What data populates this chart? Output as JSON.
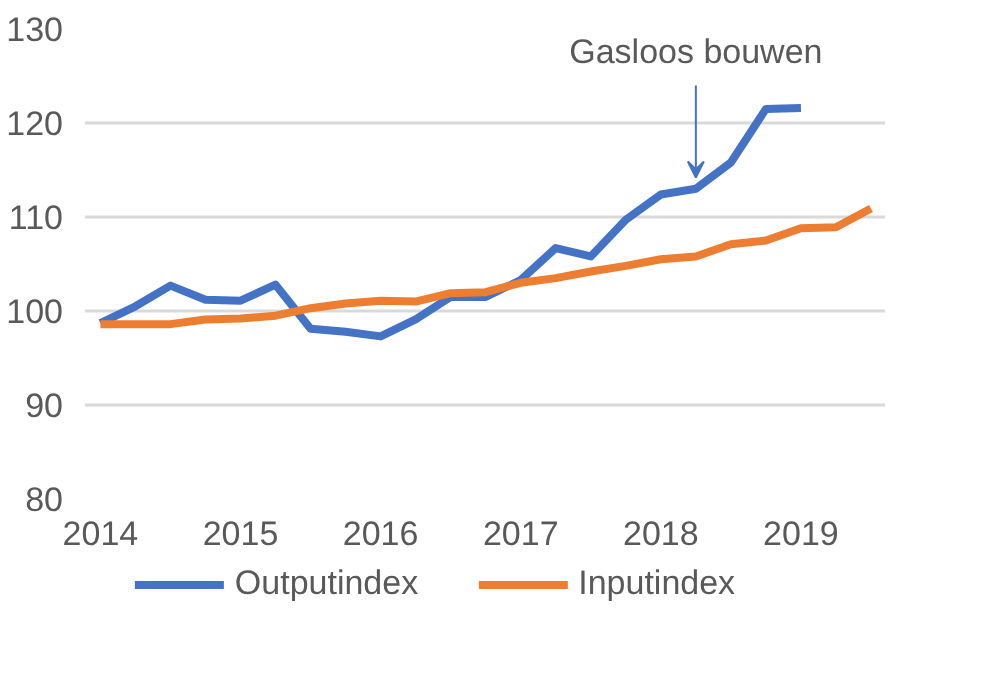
{
  "chart_data": {
    "type": "line",
    "x": [
      2014,
      2014.25,
      2014.5,
      2014.75,
      2015,
      2015.25,
      2015.5,
      2015.75,
      2016,
      2016.25,
      2016.5,
      2016.75,
      2017,
      2017.25,
      2017.5,
      2017.75,
      2018,
      2018.25,
      2018.5,
      2018.75,
      2019,
      2019.25,
      2019.5
    ],
    "series": [
      {
        "name": "Outputindex",
        "color": "#4472c4",
        "values": [
          98.7,
          100.5,
          102.7,
          101.2,
          101.1,
          102.8,
          98.1,
          97.8,
          97.3,
          99.1,
          101.5,
          101.5,
          103.3,
          106.7,
          105.8,
          109.7,
          112.4,
          113,
          115.8,
          121.5,
          121.6,
          null,
          null
        ]
      },
      {
        "name": "Inputindex",
        "color": "#ed7d31",
        "values": [
          98.6,
          98.6,
          98.6,
          99.1,
          99.2,
          99.5,
          100.3,
          100.8,
          101.1,
          101,
          101.9,
          102,
          103,
          103.5,
          104.2,
          104.8,
          105.5,
          105.8,
          107.1,
          107.5,
          108.8,
          108.9,
          110.9
        ]
      }
    ],
    "xlim": [
      2013.89,
      2019.6
    ],
    "xticks": [
      2014,
      2015,
      2016,
      2017,
      2018,
      2019
    ],
    "ylim": [
      80,
      130
    ],
    "yticks": [
      80,
      90,
      100,
      110,
      120,
      130
    ],
    "grid": "y",
    "legend": "bottom",
    "marker": "none",
    "line_style": "solid",
    "annotations": [
      {
        "text": "Gasloos bouwen",
        "x": 2018.25,
        "y": 113
      }
    ]
  }
}
